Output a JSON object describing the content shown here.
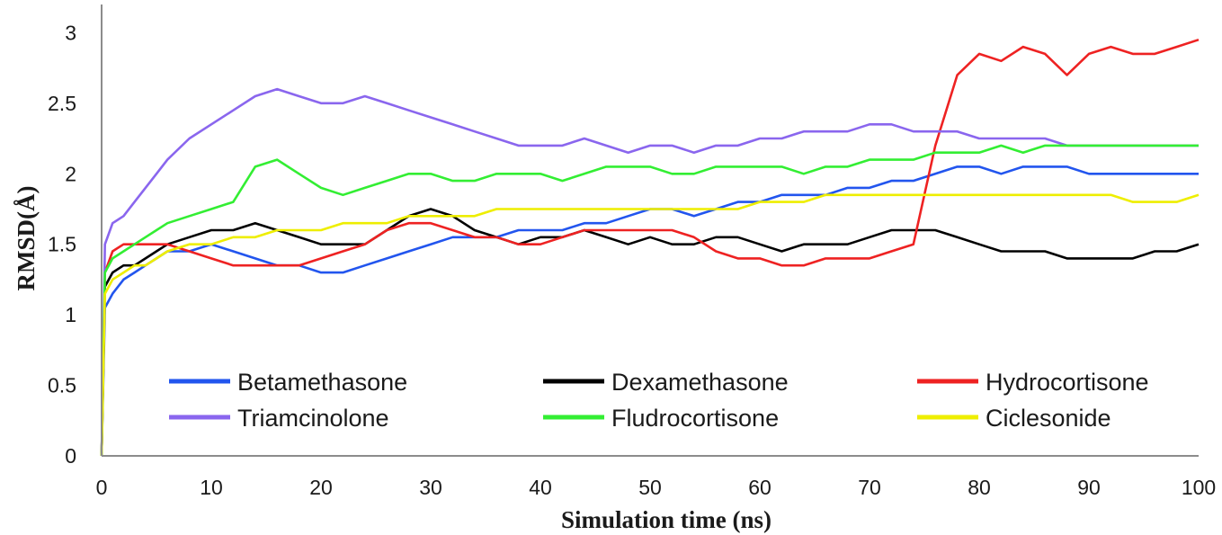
{
  "chart_data": {
    "type": "line",
    "title": "",
    "xlabel": "Simulation time (ns)",
    "ylabel": "RMSD(Å)",
    "xlim": [
      0,
      100
    ],
    "ylim": [
      0,
      3.2
    ],
    "x_ticks": [
      "0",
      "10",
      "20",
      "30",
      "40",
      "50",
      "60",
      "70",
      "80",
      "90",
      "100"
    ],
    "y_ticks": [
      "0",
      "0.5",
      "1",
      "1.5",
      "2",
      "2.5",
      "3"
    ],
    "grid": false,
    "legend_position": "inside-bottom",
    "x": [
      0,
      0.3,
      1,
      2,
      3,
      4,
      5,
      6,
      8,
      10,
      12,
      14,
      16,
      18,
      20,
      22,
      24,
      26,
      28,
      30,
      32,
      34,
      36,
      38,
      40,
      42,
      44,
      46,
      48,
      50,
      52,
      54,
      56,
      58,
      60,
      62,
      64,
      66,
      68,
      70,
      72,
      74,
      76,
      78,
      80,
      82,
      84,
      86,
      88,
      90,
      92,
      94,
      96,
      98,
      100
    ],
    "series": [
      {
        "name": "Betamethasone",
        "color": "#2255ee",
        "values": [
          0,
          1.05,
          1.15,
          1.25,
          1.3,
          1.35,
          1.4,
          1.45,
          1.45,
          1.5,
          1.45,
          1.4,
          1.35,
          1.35,
          1.3,
          1.3,
          1.35,
          1.4,
          1.45,
          1.5,
          1.55,
          1.55,
          1.55,
          1.6,
          1.6,
          1.6,
          1.65,
          1.65,
          1.7,
          1.75,
          1.75,
          1.7,
          1.75,
          1.8,
          1.8,
          1.85,
          1.85,
          1.85,
          1.9,
          1.9,
          1.95,
          1.95,
          2.0,
          2.05,
          2.05,
          2.0,
          2.05,
          2.05,
          2.05,
          2.0,
          2.0,
          2.0,
          2.0,
          2.0,
          2.0
        ]
      },
      {
        "name": "Dexamethasone",
        "color": "#000000",
        "values": [
          0,
          1.2,
          1.3,
          1.35,
          1.35,
          1.4,
          1.45,
          1.5,
          1.55,
          1.6,
          1.6,
          1.65,
          1.6,
          1.55,
          1.5,
          1.5,
          1.5,
          1.6,
          1.7,
          1.75,
          1.7,
          1.6,
          1.55,
          1.5,
          1.55,
          1.55,
          1.6,
          1.55,
          1.5,
          1.55,
          1.5,
          1.5,
          1.55,
          1.55,
          1.5,
          1.45,
          1.5,
          1.5,
          1.5,
          1.55,
          1.6,
          1.6,
          1.6,
          1.55,
          1.5,
          1.45,
          1.45,
          1.45,
          1.4,
          1.4,
          1.4,
          1.4,
          1.45,
          1.45,
          1.5
        ]
      },
      {
        "name": "Hydrocortisone",
        "color": "#ee2222",
        "values": [
          0,
          1.3,
          1.45,
          1.5,
          1.5,
          1.5,
          1.5,
          1.5,
          1.45,
          1.4,
          1.35,
          1.35,
          1.35,
          1.35,
          1.4,
          1.45,
          1.5,
          1.6,
          1.65,
          1.65,
          1.6,
          1.55,
          1.55,
          1.5,
          1.5,
          1.55,
          1.6,
          1.6,
          1.6,
          1.6,
          1.6,
          1.55,
          1.45,
          1.4,
          1.4,
          1.35,
          1.35,
          1.4,
          1.4,
          1.4,
          1.45,
          1.5,
          2.2,
          2.7,
          2.85,
          2.8,
          2.9,
          2.85,
          2.7,
          2.85,
          2.9,
          2.85,
          2.85,
          2.9,
          2.95
        ]
      },
      {
        "name": "Triamcinolone",
        "color": "#8a66ee",
        "values": [
          0,
          1.5,
          1.65,
          1.7,
          1.8,
          1.9,
          2.0,
          2.1,
          2.25,
          2.35,
          2.45,
          2.55,
          2.6,
          2.55,
          2.5,
          2.5,
          2.55,
          2.5,
          2.45,
          2.4,
          2.35,
          2.3,
          2.25,
          2.2,
          2.2,
          2.2,
          2.25,
          2.2,
          2.15,
          2.2,
          2.2,
          2.15,
          2.2,
          2.2,
          2.25,
          2.25,
          2.3,
          2.3,
          2.3,
          2.35,
          2.35,
          2.3,
          2.3,
          2.3,
          2.25,
          2.25,
          2.25,
          2.25,
          2.2,
          2.2,
          2.2,
          2.2,
          2.2,
          2.2,
          2.2
        ]
      },
      {
        "name": "Fludrocortisone",
        "color": "#33ee33",
        "values": [
          0,
          1.3,
          1.4,
          1.45,
          1.5,
          1.55,
          1.6,
          1.65,
          1.7,
          1.75,
          1.8,
          2.05,
          2.1,
          2.0,
          1.9,
          1.85,
          1.9,
          1.95,
          2.0,
          2.0,
          1.95,
          1.95,
          2.0,
          2.0,
          2.0,
          1.95,
          2.0,
          2.05,
          2.05,
          2.05,
          2.0,
          2.0,
          2.05,
          2.05,
          2.05,
          2.05,
          2.0,
          2.05,
          2.05,
          2.1,
          2.1,
          2.1,
          2.15,
          2.15,
          2.15,
          2.2,
          2.15,
          2.2,
          2.2,
          2.2,
          2.2,
          2.2,
          2.2,
          2.2,
          2.2
        ]
      },
      {
        "name": "Ciclesonide",
        "color": "#eeee00",
        "values": [
          0,
          1.15,
          1.25,
          1.3,
          1.35,
          1.35,
          1.4,
          1.45,
          1.5,
          1.5,
          1.55,
          1.55,
          1.6,
          1.6,
          1.6,
          1.65,
          1.65,
          1.65,
          1.7,
          1.7,
          1.7,
          1.7,
          1.75,
          1.75,
          1.75,
          1.75,
          1.75,
          1.75,
          1.75,
          1.75,
          1.75,
          1.75,
          1.75,
          1.75,
          1.8,
          1.8,
          1.8,
          1.85,
          1.85,
          1.85,
          1.85,
          1.85,
          1.85,
          1.85,
          1.85,
          1.85,
          1.85,
          1.85,
          1.85,
          1.85,
          1.85,
          1.8,
          1.8,
          1.8,
          1.85
        ]
      }
    ]
  }
}
